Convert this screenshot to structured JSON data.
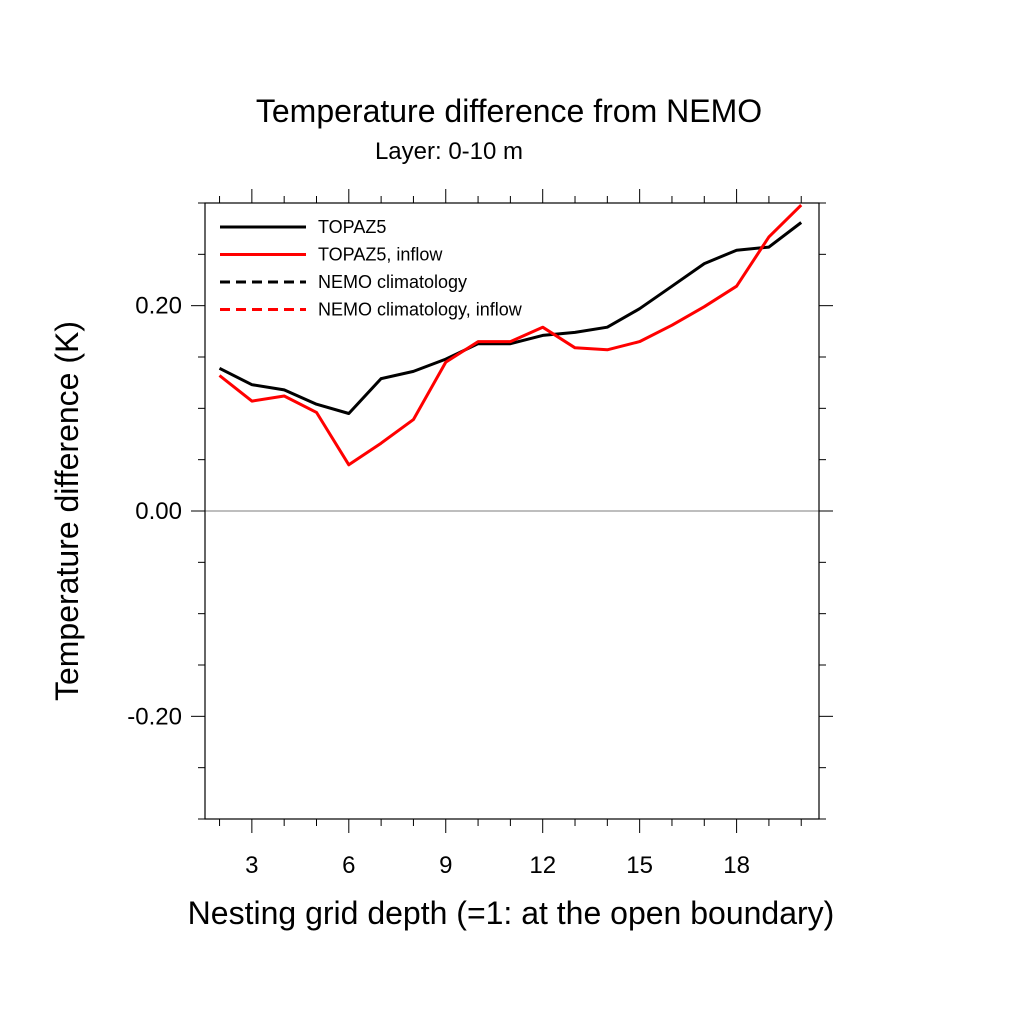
{
  "chart_data": {
    "type": "line",
    "title": "Temperature difference from NEMO",
    "subtitle": "Layer: 0-10 m",
    "xlabel": "Nesting grid depth (=1: at the open boundary)",
    "ylabel": "Temperature difference (K)",
    "xlim": [
      1.55,
      20.55
    ],
    "ylim": [
      -0.3,
      0.3
    ],
    "x_major_ticks": [
      3,
      6,
      9,
      12,
      15,
      18
    ],
    "x_tick_labels": [
      "3",
      "6",
      "9",
      "12",
      "15",
      "18"
    ],
    "y_major_ticks": [
      -0.2,
      0.0,
      0.2
    ],
    "y_tick_labels": [
      "-0.20",
      "0.00",
      "0.20"
    ],
    "zero_line": true,
    "grid": false,
    "legend_position": "top-left",
    "series": [
      {
        "name": "TOPAZ5",
        "color": "#000000",
        "dash": "solid",
        "x": [
          2,
          3,
          4,
          5,
          6,
          7,
          8,
          9,
          10,
          11,
          12,
          13,
          14,
          15,
          16,
          17,
          18,
          19,
          20
        ],
        "y": [
          0.139,
          0.123,
          0.118,
          0.104,
          0.095,
          0.129,
          0.136,
          0.148,
          0.163,
          0.163,
          0.171,
          0.174,
          0.179,
          0.197,
          0.219,
          0.241,
          0.254,
          0.257,
          0.281
        ]
      },
      {
        "name": "TOPAZ5, inflow",
        "color": "#ff0000",
        "dash": "solid",
        "x": [
          2,
          3,
          4,
          5,
          6,
          7,
          8,
          9,
          10,
          11,
          12,
          13,
          14,
          15,
          16,
          17,
          18,
          19,
          20
        ],
        "y": [
          0.132,
          0.107,
          0.112,
          0.096,
          0.045,
          0.066,
          0.089,
          0.145,
          0.165,
          0.165,
          0.179,
          0.159,
          0.157,
          0.165,
          0.181,
          0.199,
          0.219,
          0.267,
          0.298
        ]
      },
      {
        "name": "NEMO climatology",
        "color": "#000000",
        "dash": "dashed",
        "x": [],
        "y": []
      },
      {
        "name": "NEMO climatology, inflow",
        "color": "#ff0000",
        "dash": "dashed",
        "x": [],
        "y": []
      }
    ]
  }
}
